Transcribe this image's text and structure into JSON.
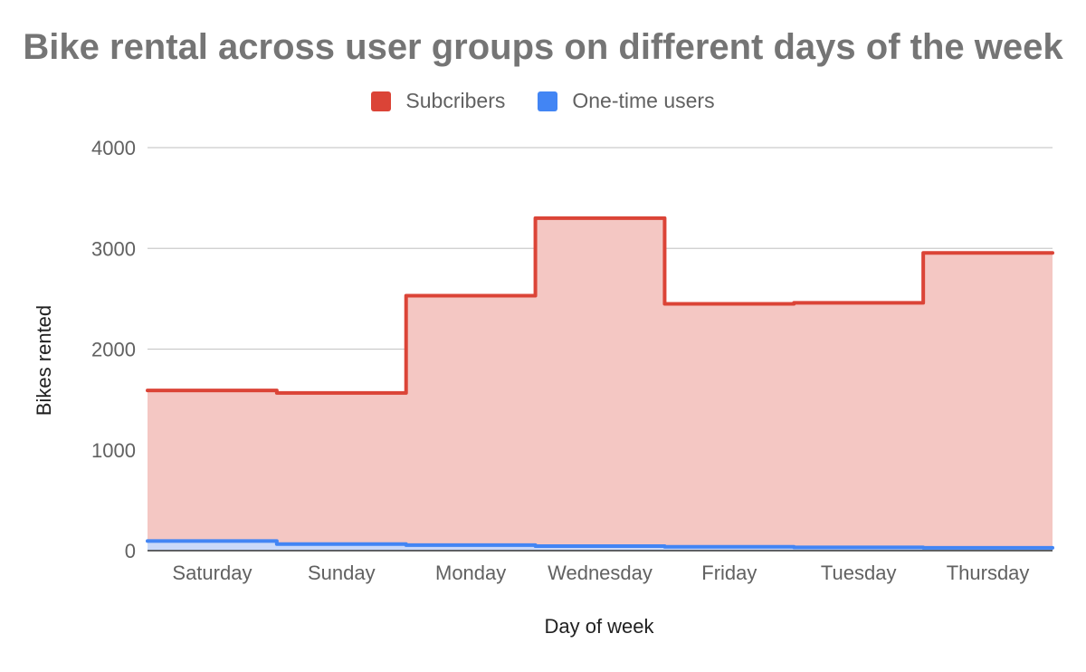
{
  "colors": {
    "subscribers_line": "#db4437",
    "subscribers_fill": "#f4c7c3",
    "onetime_line": "#4285f4",
    "onetime_fill": "#c6dafc",
    "grid": "#cccccc",
    "text": "#616161"
  },
  "chart_data": {
    "type": "area",
    "title": "Bike rental across user groups on different days of the week",
    "xlabel": "Day of week",
    "ylabel": "Bikes rented",
    "categories": [
      "Saturday",
      "Sunday",
      "Monday",
      "Wednesday",
      "Friday",
      "Tuesday",
      "Thursday"
    ],
    "series": [
      {
        "name": "Subcribers",
        "values": [
          1590,
          1565,
          2530,
          3300,
          2450,
          2460,
          2955
        ]
      },
      {
        "name": "One-time users",
        "values": [
          95,
          65,
          55,
          45,
          38,
          33,
          28
        ]
      }
    ],
    "ylim": [
      0,
      4000
    ],
    "yticks": [
      0,
      1000,
      2000,
      3000,
      4000
    ],
    "grid": true,
    "legend_position": "top",
    "line_style": "stepped"
  }
}
